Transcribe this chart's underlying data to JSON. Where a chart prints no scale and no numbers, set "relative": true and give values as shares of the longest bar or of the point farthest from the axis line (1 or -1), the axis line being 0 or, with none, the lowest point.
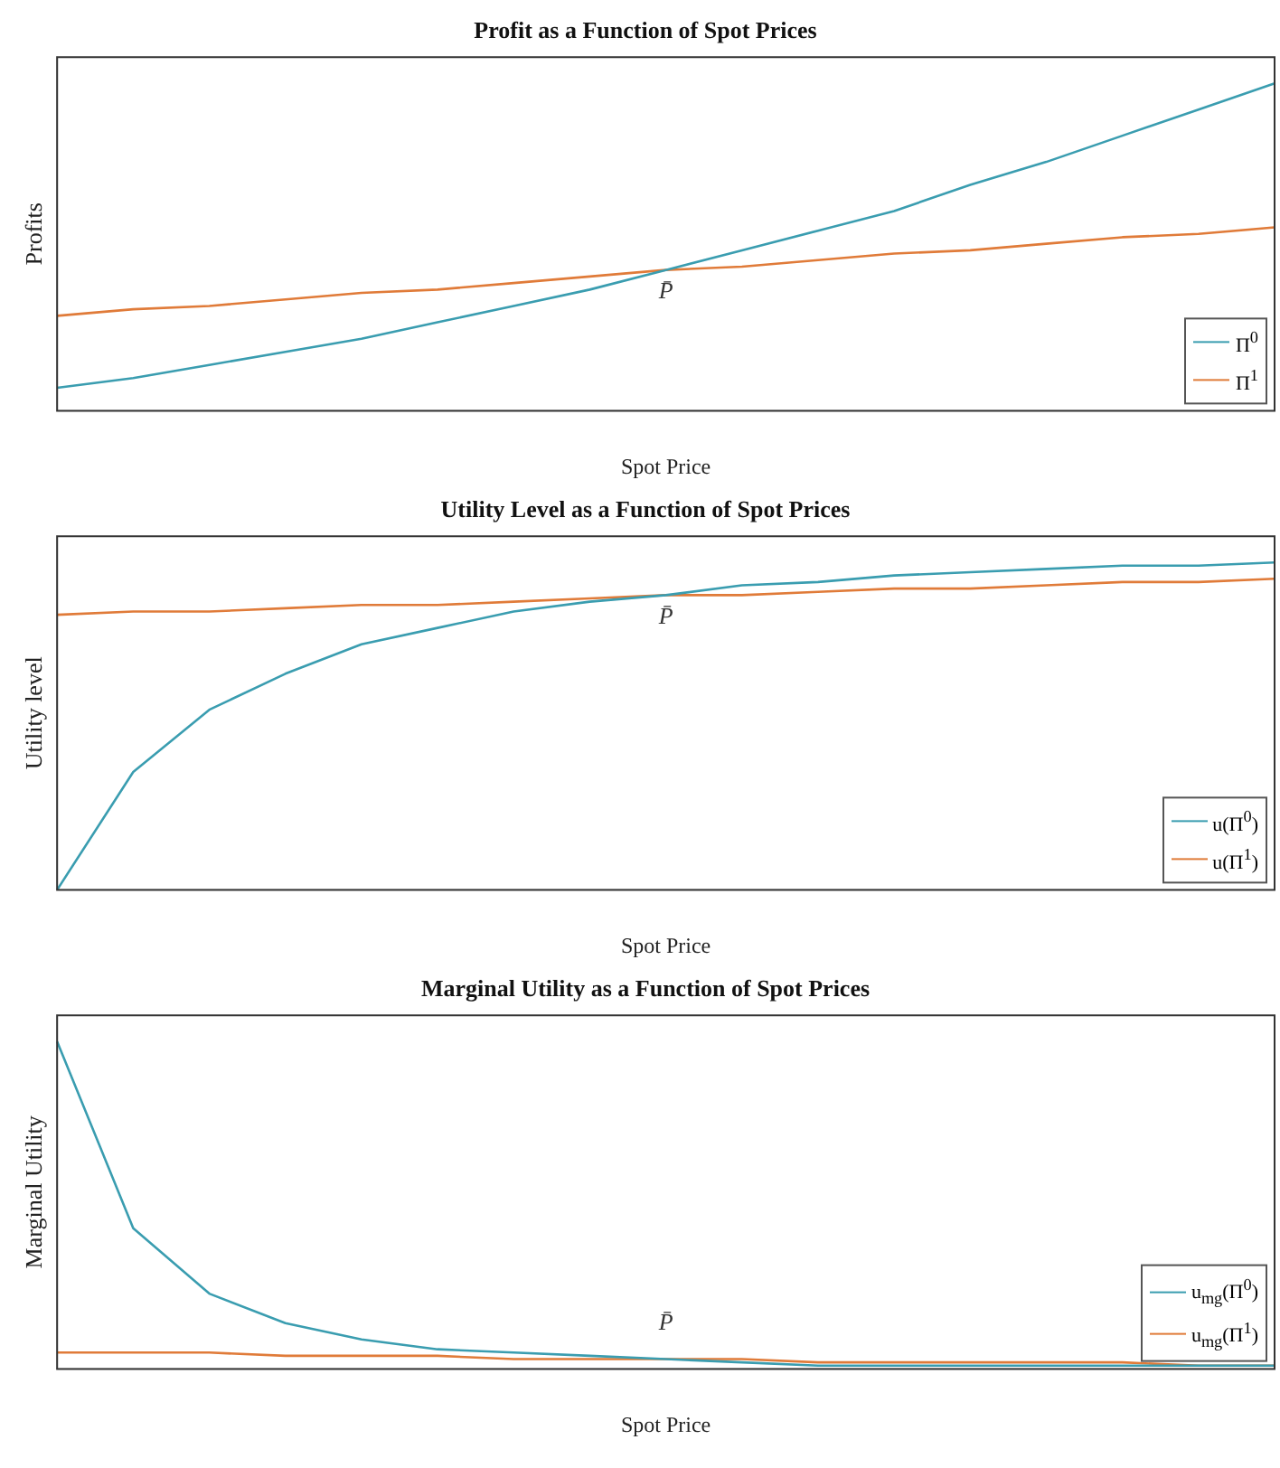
{
  "chart_data": [
    {
      "type": "line",
      "title": "Profit as a Function of Spot Prices",
      "xlabel": "Spot Price",
      "ylabel": "Profits",
      "relative": true,
      "marker": "none",
      "legend": "bottom right",
      "categories": [
        null,
        null,
        null,
        null,
        null,
        null,
        null,
        null,
        null,
        null,
        null,
        null,
        null,
        null,
        null,
        null,
        null
      ],
      "series": [
        {
          "name": "Π$^{0}$",
          "color": "#3a9db0",
          "values": [
            0.07,
            0.1,
            0.14,
            0.18,
            0.22,
            0.27,
            0.32,
            0.37,
            0.43,
            0.49,
            0.55,
            0.61,
            0.69,
            0.76,
            0.84,
            0.92,
            1.0
          ]
        },
        {
          "name": "Π$^{1}$",
          "color": "#e07b39",
          "values": [
            0.29,
            0.31,
            0.32,
            0.34,
            0.36,
            0.37,
            0.39,
            0.41,
            0.43,
            0.44,
            0.46,
            0.48,
            0.49,
            0.51,
            0.53,
            0.54,
            0.56
          ]
        }
      ],
      "annotations": [
        {
          "text": "P̄",
          "y": 0.43
        }
      ]
    },
    {
      "type": "line",
      "title": "Utility Level as a Function of Spot Prices",
      "xlabel": "Spot Price",
      "ylabel": "Utility level",
      "relative": true,
      "marker": "none",
      "legend": "bottom right",
      "categories": [
        null,
        null,
        null,
        null,
        null,
        null,
        null,
        null,
        null,
        null,
        null,
        null,
        null,
        null,
        null,
        null,
        null
      ],
      "series": [
        {
          "name": "u(Π$^{0}$)",
          "color": "#3a9db0",
          "values": [
            0,
            0.36,
            0.55,
            0.66,
            0.75,
            0.8,
            0.85,
            0.88,
            0.9,
            0.93,
            0.94,
            0.96,
            0.97,
            0.98,
            0.99,
            0.99,
            1.0
          ]
        },
        {
          "name": "u(Π$^{1}$)",
          "color": "#e07b39",
          "values": [
            0.84,
            0.85,
            0.85,
            0.86,
            0.87,
            0.87,
            0.88,
            0.89,
            0.9,
            0.9,
            0.91,
            0.92,
            0.92,
            0.93,
            0.94,
            0.94,
            0.95
          ]
        }
      ],
      "annotations": [
        {
          "text": "P̄",
          "y": 0.9
        }
      ]
    },
    {
      "type": "line",
      "title": "Marginal Utility as a Function of Spot Prices",
      "xlabel": "Spot Price",
      "ylabel": "Marginal Utility",
      "relative": true,
      "marker": "none",
      "legend": "bottom right",
      "categories": [
        null,
        null,
        null,
        null,
        null,
        null,
        null,
        null,
        null,
        null,
        null,
        null,
        null,
        null,
        null,
        null,
        null
      ],
      "series": [
        {
          "name": "u$_{mg}$(Π$^{0}$)",
          "color": "#3a9db0",
          "values": [
            1.0,
            0.43,
            0.23,
            0.14,
            0.09,
            0.06,
            0.05,
            0.04,
            0.03,
            0.02,
            0.01,
            0.01,
            0.01,
            0.01,
            0.01,
            0.01,
            0.01
          ]
        },
        {
          "name": "u$_{mg}$(Π$^{1}$)",
          "color": "#e07b39",
          "values": [
            0.05,
            0.05,
            0.05,
            0.04,
            0.04,
            0.04,
            0.03,
            0.03,
            0.03,
            0.03,
            0.02,
            0.02,
            0.02,
            0.02,
            0.02,
            0.01,
            0.01
          ]
        }
      ],
      "annotations": [
        {
          "text": "P̄",
          "y": 0.03
        }
      ]
    }
  ]
}
